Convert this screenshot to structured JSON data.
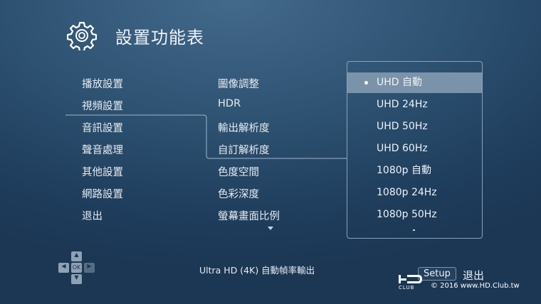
{
  "header": {
    "title": "設置功能表",
    "icon": "gear-icon"
  },
  "sidebar": {
    "items": [
      {
        "label": "播放設置"
      },
      {
        "label": "視頻設置",
        "selected": true
      },
      {
        "label": "音訊設置"
      },
      {
        "label": "聲音處理"
      },
      {
        "label": "其他設置"
      },
      {
        "label": "網路設置"
      },
      {
        "label": "退出"
      }
    ]
  },
  "submenu": {
    "items": [
      {
        "label": "圖像調整"
      },
      {
        "label": "HDR"
      },
      {
        "label": "輸出解析度"
      },
      {
        "label": "自訂解析度"
      },
      {
        "label": "色度空間"
      },
      {
        "label": "色彩深度"
      },
      {
        "label": "螢幕畫面比例"
      }
    ]
  },
  "dropdown": {
    "options": [
      {
        "label": "UHD 自動",
        "selected": true
      },
      {
        "label": "UHD 24Hz"
      },
      {
        "label": "UHD 50Hz"
      },
      {
        "label": "UHD 60Hz"
      },
      {
        "label": "1080p 自動"
      },
      {
        "label": "1080p 24Hz"
      },
      {
        "label": "1080p 50Hz"
      }
    ]
  },
  "footer": {
    "hint": "Ultra HD (4K) 自動幀率輸出",
    "ok_label": "OK",
    "setup_label": "Setup",
    "exit_label": "退出",
    "copyright": "© 2016  www.HD.Club.tw",
    "logo_text": "HD CLUB"
  },
  "colors": {
    "highlight": "#7b93aa",
    "background": "#2e5272"
  }
}
